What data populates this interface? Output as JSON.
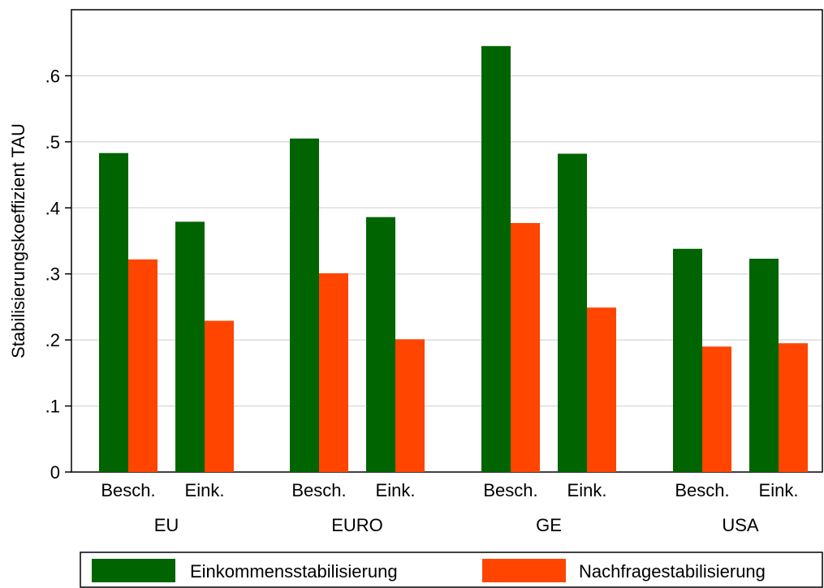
{
  "chart_data": {
    "type": "bar",
    "ylabel": "Stabilisierungskoeffizient TAU",
    "ylim": [
      0,
      0.7
    ],
    "yticks": [
      {
        "value": 0,
        "label": "0"
      },
      {
        "value": 0.1,
        "label": ".1"
      },
      {
        "value": 0.2,
        "label": ".2"
      },
      {
        "value": 0.3,
        "label": ".3"
      },
      {
        "value": 0.4,
        "label": ".4"
      },
      {
        "value": 0.5,
        "label": ".5"
      },
      {
        "value": 0.6,
        "label": ".6"
      }
    ],
    "grid": true,
    "legend_position": "bottom",
    "groups": [
      {
        "label": "EU",
        "subcategories": [
          "Besch.",
          "Eink."
        ]
      },
      {
        "label": "EURO",
        "subcategories": [
          "Besch.",
          "Eink."
        ]
      },
      {
        "label": "GE",
        "subcategories": [
          "Besch.",
          "Eink."
        ]
      },
      {
        "label": "USA",
        "subcategories": [
          "Besch.",
          "Eink."
        ]
      }
    ],
    "series": [
      {
        "name": "Einkommensstabilisierung",
        "color": "#006400",
        "values": [
          0.483,
          0.379,
          0.505,
          0.386,
          0.645,
          0.482,
          0.338,
          0.323
        ]
      },
      {
        "name": "Nachfragestabilisierung",
        "color": "#ff4500",
        "values": [
          0.322,
          0.229,
          0.301,
          0.201,
          0.377,
          0.249,
          0.19,
          0.195
        ]
      }
    ]
  }
}
